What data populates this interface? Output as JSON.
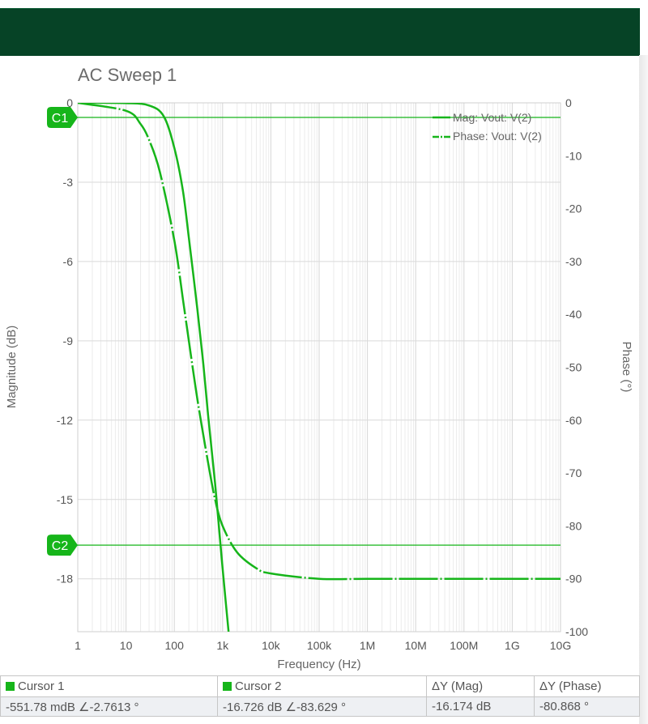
{
  "window": {
    "header_color": "#064326"
  },
  "chart_data": {
    "type": "line",
    "title": "AC Sweep 1",
    "xlabel": "Frequency (Hz)",
    "ylabel_left": "Magnitude (dB)",
    "ylabel_right": "Phase (°)",
    "x_scale": "log",
    "xlim": [
      1,
      10000000000
    ],
    "ylim_left": [
      -20,
      0
    ],
    "ylim_right": [
      -100,
      0
    ],
    "grid": true,
    "legend_position": "top-right",
    "x_tick_labels": [
      "1",
      "10",
      "100",
      "1k",
      "10k",
      "100k",
      "1M",
      "10M",
      "100M",
      "1G",
      "10G"
    ],
    "y_left_tick_labels": [
      "0",
      "-3",
      "-6",
      "-9",
      "-12",
      "-15",
      "-18"
    ],
    "y_right_tick_labels": [
      "0",
      "-10",
      "-20",
      "-30",
      "-40",
      "-50",
      "-60",
      "-70",
      "-80",
      "-90",
      "-100"
    ],
    "series": [
      {
        "name": "Mag: Vout: V(2)",
        "axis": "left",
        "style": "solid",
        "color": "#16b51a",
        "x": [
          1,
          10,
          30,
          60,
          100,
          150,
          200,
          300,
          400,
          500,
          700,
          1000,
          1500
        ],
        "y": [
          0,
          -0.01,
          -0.1,
          -0.5,
          -1.7,
          -3.3,
          -5.1,
          -7.8,
          -9.9,
          -11.8,
          -14.4,
          -17.6,
          -21
        ]
      },
      {
        "name": "Phase: Vout: V(2)",
        "axis": "right",
        "style": "dash-dot",
        "color": "#16b51a",
        "x": [
          1,
          10,
          20,
          30,
          50,
          100,
          150,
          200,
          300,
          500,
          700,
          1000,
          2000,
          5000,
          10000,
          100000,
          1000000,
          10000000,
          100000000,
          1000000000,
          10000000000
        ],
        "y": [
          0,
          -1.5,
          -4,
          -7,
          -13,
          -26,
          -37,
          -45,
          -56,
          -68,
          -75,
          -80,
          -85,
          -88,
          -89,
          -90,
          -90,
          -90,
          -90,
          -90,
          -90
        ]
      }
    ],
    "cursors": [
      {
        "name": "C1",
        "magnitude_db": -0.55178
      },
      {
        "name": "C2",
        "magnitude_db": -16.726
      }
    ]
  },
  "cursor_panel": {
    "headers": [
      "Cursor 1",
      "Cursor 2",
      "ΔY (Mag)",
      "ΔY (Phase)"
    ],
    "values": [
      "-551.78 mdB ∠-2.7613 °",
      "-16.726 dB ∠-83.629 °",
      "-16.174 dB",
      "-80.868 °"
    ],
    "marker_color": "#16b51a"
  }
}
